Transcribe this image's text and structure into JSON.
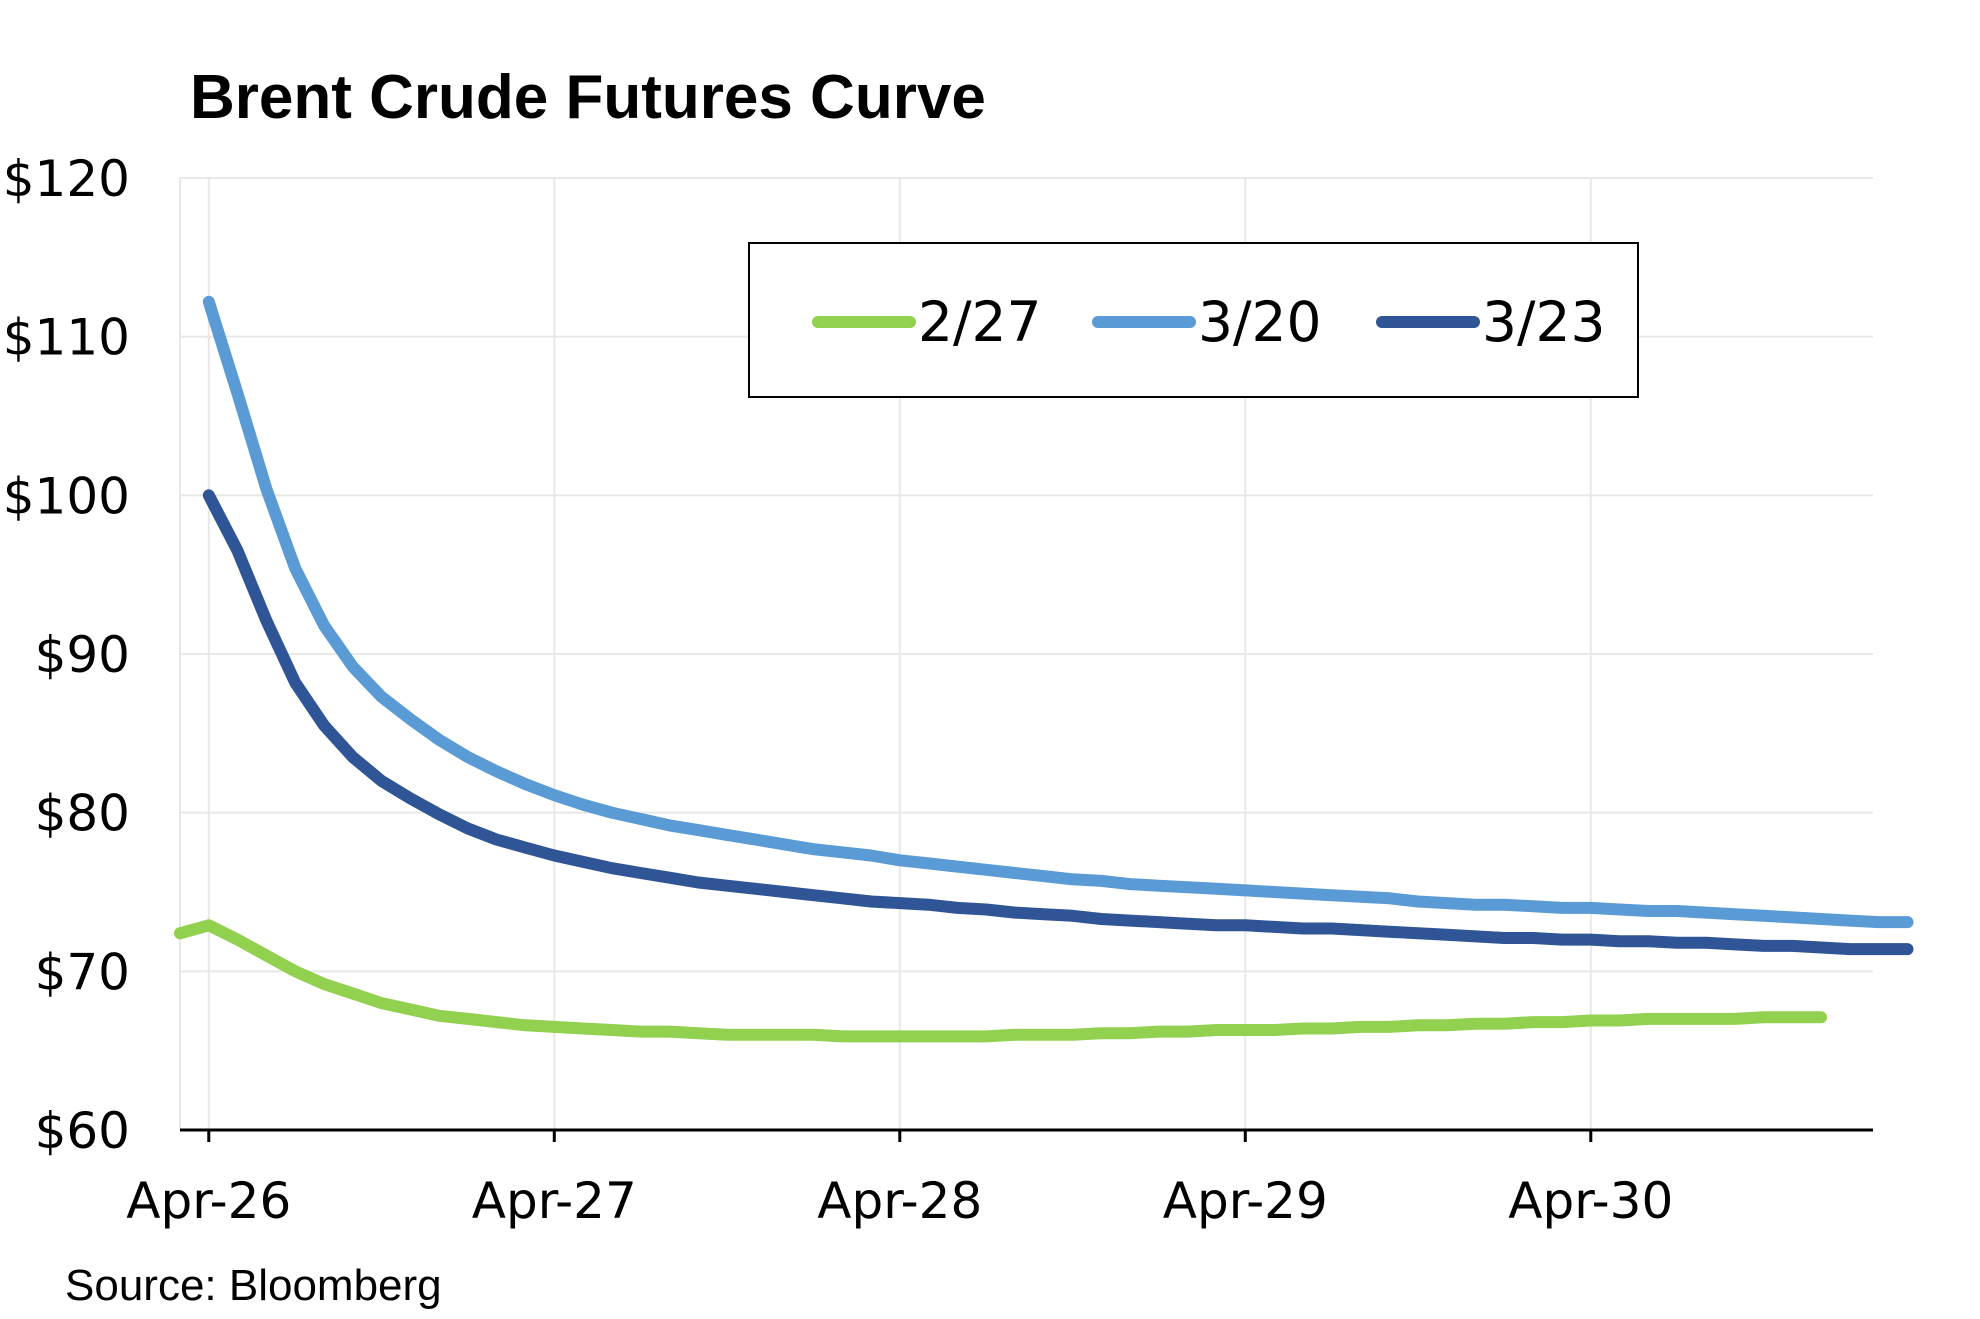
{
  "chart_data": {
    "type": "line",
    "title": "Brent Crude Futures Curve",
    "source": "Source: Bloomberg",
    "xlabel": "",
    "ylabel": "",
    "x_tick_labels": [
      "Apr-26",
      "Apr-27",
      "Apr-28",
      "Apr-29",
      "Apr-30"
    ],
    "y_tick_labels": [
      "$60",
      "$70",
      "$80",
      "$90",
      "$100",
      "$110",
      "$120"
    ],
    "ylim": [
      60,
      120
    ],
    "grid": true,
    "legend_position": "top-right",
    "series": [
      {
        "name": "2/27",
        "color": "#92d050",
        "points": [
          [
            "Mar-26",
            72.4
          ],
          [
            "Apr-26",
            72.9
          ],
          [
            "May-26",
            72.0
          ],
          [
            "Jun-26",
            71.0
          ],
          [
            "Jul-26",
            70.0
          ],
          [
            "Aug-26",
            69.2
          ],
          [
            "Sep-26",
            68.6
          ],
          [
            "Oct-26",
            68.0
          ],
          [
            "Nov-26",
            67.6
          ],
          [
            "Dec-26",
            67.2
          ],
          [
            "Jan-27",
            67.0
          ],
          [
            "Feb-27",
            66.8
          ],
          [
            "Mar-27",
            66.6
          ],
          [
            "Apr-27",
            66.5
          ],
          [
            "May-27",
            66.4
          ],
          [
            "Jun-27",
            66.3
          ],
          [
            "Jul-27",
            66.2
          ],
          [
            "Aug-27",
            66.2
          ],
          [
            "Sep-27",
            66.1
          ],
          [
            "Oct-27",
            66.0
          ],
          [
            "Nov-27",
            66.0
          ],
          [
            "Dec-27",
            66.0
          ],
          [
            "Jan-28",
            66.0
          ],
          [
            "Feb-28",
            65.9
          ],
          [
            "Mar-28",
            65.9
          ],
          [
            "Apr-28",
            65.9
          ],
          [
            "May-28",
            65.9
          ],
          [
            "Jun-28",
            65.9
          ],
          [
            "Jul-28",
            65.9
          ],
          [
            "Aug-28",
            66.0
          ],
          [
            "Sep-28",
            66.0
          ],
          [
            "Oct-28",
            66.0
          ],
          [
            "Nov-28",
            66.1
          ],
          [
            "Dec-28",
            66.1
          ],
          [
            "Jan-29",
            66.2
          ],
          [
            "Feb-29",
            66.2
          ],
          [
            "Mar-29",
            66.3
          ],
          [
            "Apr-29",
            66.3
          ],
          [
            "May-29",
            66.3
          ],
          [
            "Jun-29",
            66.4
          ],
          [
            "Jul-29",
            66.4
          ],
          [
            "Aug-29",
            66.5
          ],
          [
            "Sep-29",
            66.5
          ],
          [
            "Oct-29",
            66.6
          ],
          [
            "Nov-29",
            66.6
          ],
          [
            "Dec-29",
            66.7
          ],
          [
            "Jan-30",
            66.7
          ],
          [
            "Feb-30",
            66.8
          ],
          [
            "Mar-30",
            66.8
          ],
          [
            "Apr-30",
            66.9
          ],
          [
            "May-30",
            66.9
          ],
          [
            "Jun-30",
            67.0
          ],
          [
            "Jul-30",
            67.0
          ],
          [
            "Aug-30",
            67.0
          ],
          [
            "Sep-30",
            67.0
          ],
          [
            "Oct-30",
            67.1
          ],
          [
            "Nov-30",
            67.1
          ],
          [
            "Dec-30",
            67.1
          ]
        ]
      },
      {
        "name": "3/20",
        "color": "#5b9bd5",
        "points": [
          [
            "Apr-26",
            112.2
          ],
          [
            "May-26",
            106.4
          ],
          [
            "Jun-26",
            100.4
          ],
          [
            "Jul-26",
            95.4
          ],
          [
            "Aug-26",
            91.8
          ],
          [
            "Sep-26",
            89.2
          ],
          [
            "Oct-26",
            87.3
          ],
          [
            "Nov-26",
            85.9
          ],
          [
            "Dec-26",
            84.6
          ],
          [
            "Jan-27",
            83.5
          ],
          [
            "Feb-27",
            82.6
          ],
          [
            "Mar-27",
            81.8
          ],
          [
            "Apr-27",
            81.1
          ],
          [
            "May-27",
            80.5
          ],
          [
            "Jun-27",
            80.0
          ],
          [
            "Jul-27",
            79.6
          ],
          [
            "Aug-27",
            79.2
          ],
          [
            "Sep-27",
            78.9
          ],
          [
            "Oct-27",
            78.6
          ],
          [
            "Nov-27",
            78.3
          ],
          [
            "Dec-27",
            78.0
          ],
          [
            "Jan-28",
            77.7
          ],
          [
            "Feb-28",
            77.5
          ],
          [
            "Mar-28",
            77.3
          ],
          [
            "Apr-28",
            77.0
          ],
          [
            "May-28",
            76.8
          ],
          [
            "Jun-28",
            76.6
          ],
          [
            "Jul-28",
            76.4
          ],
          [
            "Aug-28",
            76.2
          ],
          [
            "Sep-28",
            76.0
          ],
          [
            "Oct-28",
            75.8
          ],
          [
            "Nov-28",
            75.7
          ],
          [
            "Dec-28",
            75.5
          ],
          [
            "Jan-29",
            75.4
          ],
          [
            "Feb-29",
            75.3
          ],
          [
            "Mar-29",
            75.2
          ],
          [
            "Apr-29",
            75.1
          ],
          [
            "May-29",
            75.0
          ],
          [
            "Jun-29",
            74.9
          ],
          [
            "Jul-29",
            74.8
          ],
          [
            "Aug-29",
            74.7
          ],
          [
            "Sep-29",
            74.6
          ],
          [
            "Oct-29",
            74.4
          ],
          [
            "Nov-29",
            74.3
          ],
          [
            "Dec-29",
            74.2
          ],
          [
            "Jan-30",
            74.2
          ],
          [
            "Feb-30",
            74.1
          ],
          [
            "Mar-30",
            74.0
          ],
          [
            "Apr-30",
            74.0
          ],
          [
            "May-30",
            73.9
          ],
          [
            "Jun-30",
            73.8
          ],
          [
            "Jul-30",
            73.8
          ],
          [
            "Aug-30",
            73.7
          ],
          [
            "Sep-30",
            73.6
          ],
          [
            "Oct-30",
            73.5
          ],
          [
            "Nov-30",
            73.4
          ],
          [
            "Dec-30",
            73.3
          ],
          [
            "Jan-31",
            73.2
          ],
          [
            "Feb-31",
            73.1
          ],
          [
            "Mar-31",
            73.1
          ]
        ]
      },
      {
        "name": "3/23",
        "color": "#2f5597",
        "points": [
          [
            "Apr-26",
            100.0
          ],
          [
            "May-26",
            96.5
          ],
          [
            "Jun-26",
            92.1
          ],
          [
            "Jul-26",
            88.2
          ],
          [
            "Aug-26",
            85.5
          ],
          [
            "Sep-26",
            83.5
          ],
          [
            "Oct-26",
            82.0
          ],
          [
            "Nov-26",
            80.9
          ],
          [
            "Dec-26",
            79.9
          ],
          [
            "Jan-27",
            79.0
          ],
          [
            "Feb-27",
            78.3
          ],
          [
            "Mar-27",
            77.8
          ],
          [
            "Apr-27",
            77.3
          ],
          [
            "May-27",
            76.9
          ],
          [
            "Jun-27",
            76.5
          ],
          [
            "Jul-27",
            76.2
          ],
          [
            "Aug-27",
            75.9
          ],
          [
            "Sep-27",
            75.6
          ],
          [
            "Oct-27",
            75.4
          ],
          [
            "Nov-27",
            75.2
          ],
          [
            "Dec-27",
            75.0
          ],
          [
            "Jan-28",
            74.8
          ],
          [
            "Feb-28",
            74.6
          ],
          [
            "Mar-28",
            74.4
          ],
          [
            "Apr-28",
            74.3
          ],
          [
            "May-28",
            74.2
          ],
          [
            "Jun-28",
            74.0
          ],
          [
            "Jul-28",
            73.9
          ],
          [
            "Aug-28",
            73.7
          ],
          [
            "Sep-28",
            73.6
          ],
          [
            "Oct-28",
            73.5
          ],
          [
            "Nov-28",
            73.3
          ],
          [
            "Dec-28",
            73.2
          ],
          [
            "Jan-29",
            73.1
          ],
          [
            "Feb-29",
            73.0
          ],
          [
            "Mar-29",
            72.9
          ],
          [
            "Apr-29",
            72.9
          ],
          [
            "May-29",
            72.8
          ],
          [
            "Jun-29",
            72.7
          ],
          [
            "Jul-29",
            72.7
          ],
          [
            "Aug-29",
            72.6
          ],
          [
            "Sep-29",
            72.5
          ],
          [
            "Oct-29",
            72.4
          ],
          [
            "Nov-29",
            72.3
          ],
          [
            "Dec-29",
            72.2
          ],
          [
            "Jan-30",
            72.1
          ],
          [
            "Feb-30",
            72.1
          ],
          [
            "Mar-30",
            72.0
          ],
          [
            "Apr-30",
            72.0
          ],
          [
            "May-30",
            71.9
          ],
          [
            "Jun-30",
            71.9
          ],
          [
            "Jul-30",
            71.8
          ],
          [
            "Aug-30",
            71.8
          ],
          [
            "Sep-30",
            71.7
          ],
          [
            "Oct-30",
            71.6
          ],
          [
            "Nov-30",
            71.6
          ],
          [
            "Dec-30",
            71.5
          ],
          [
            "Jan-31",
            71.4
          ],
          [
            "Feb-31",
            71.4
          ],
          [
            "Mar-31",
            71.4
          ]
        ]
      }
    ]
  }
}
